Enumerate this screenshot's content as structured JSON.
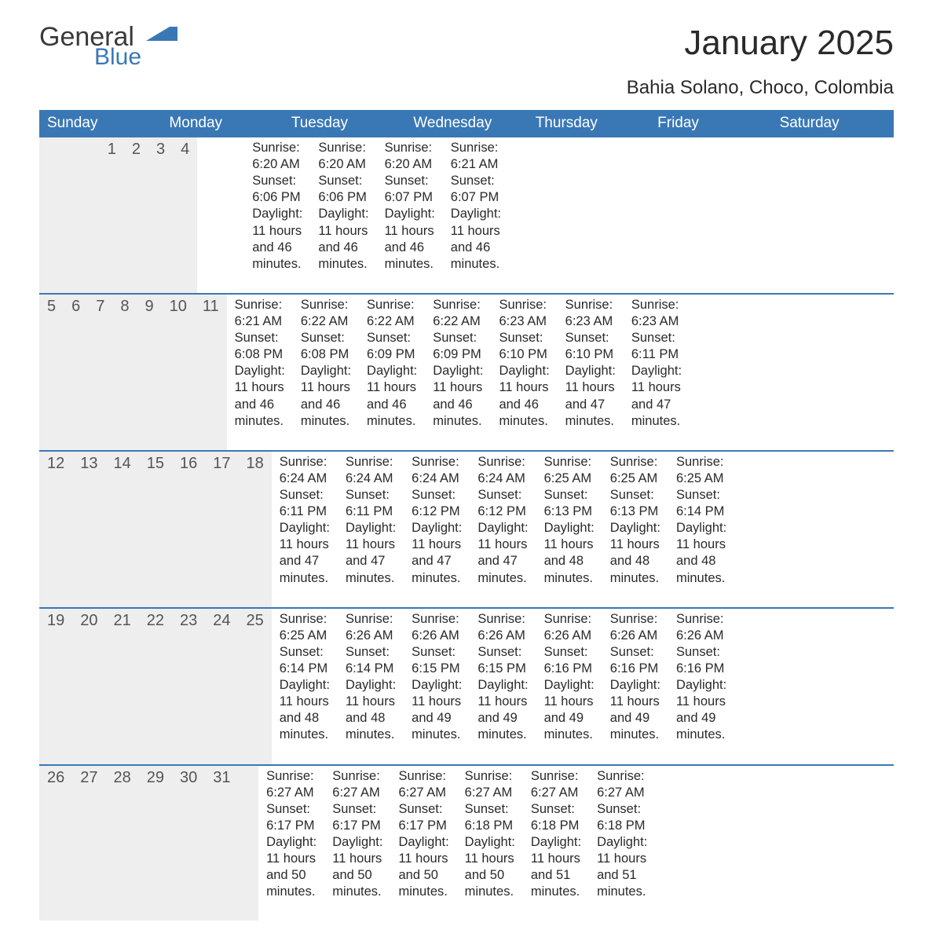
{
  "logo": {
    "general": "General",
    "blue": "Blue",
    "flag_color": "#3a78b5"
  },
  "title": "January 2025",
  "location": "Bahia Solano, Choco, Colombia",
  "colors": {
    "header_bg": "#3a78b5",
    "header_text": "#ffffff",
    "daynum_bg": "#eeeeee",
    "week_border": "#3a78b5",
    "body_text": "#2a2a2a",
    "page_bg": "#ffffff"
  },
  "day_names": [
    "Sunday",
    "Monday",
    "Tuesday",
    "Wednesday",
    "Thursday",
    "Friday",
    "Saturday"
  ],
  "weeks": [
    [
      {
        "empty": true
      },
      {
        "empty": true
      },
      {
        "empty": true
      },
      {
        "num": "1",
        "sunrise": "6:20 AM",
        "sunset": "6:06 PM",
        "daylight": "11 hours and 46 minutes."
      },
      {
        "num": "2",
        "sunrise": "6:20 AM",
        "sunset": "6:06 PM",
        "daylight": "11 hours and 46 minutes."
      },
      {
        "num": "3",
        "sunrise": "6:20 AM",
        "sunset": "6:07 PM",
        "daylight": "11 hours and 46 minutes."
      },
      {
        "num": "4",
        "sunrise": "6:21 AM",
        "sunset": "6:07 PM",
        "daylight": "11 hours and 46 minutes."
      }
    ],
    [
      {
        "num": "5",
        "sunrise": "6:21 AM",
        "sunset": "6:08 PM",
        "daylight": "11 hours and 46 minutes."
      },
      {
        "num": "6",
        "sunrise": "6:22 AM",
        "sunset": "6:08 PM",
        "daylight": "11 hours and 46 minutes."
      },
      {
        "num": "7",
        "sunrise": "6:22 AM",
        "sunset": "6:09 PM",
        "daylight": "11 hours and 46 minutes."
      },
      {
        "num": "8",
        "sunrise": "6:22 AM",
        "sunset": "6:09 PM",
        "daylight": "11 hours and 46 minutes."
      },
      {
        "num": "9",
        "sunrise": "6:23 AM",
        "sunset": "6:10 PM",
        "daylight": "11 hours and 46 minutes."
      },
      {
        "num": "10",
        "sunrise": "6:23 AM",
        "sunset": "6:10 PM",
        "daylight": "11 hours and 47 minutes."
      },
      {
        "num": "11",
        "sunrise": "6:23 AM",
        "sunset": "6:11 PM",
        "daylight": "11 hours and 47 minutes."
      }
    ],
    [
      {
        "num": "12",
        "sunrise": "6:24 AM",
        "sunset": "6:11 PM",
        "daylight": "11 hours and 47 minutes."
      },
      {
        "num": "13",
        "sunrise": "6:24 AM",
        "sunset": "6:11 PM",
        "daylight": "11 hours and 47 minutes."
      },
      {
        "num": "14",
        "sunrise": "6:24 AM",
        "sunset": "6:12 PM",
        "daylight": "11 hours and 47 minutes."
      },
      {
        "num": "15",
        "sunrise": "6:24 AM",
        "sunset": "6:12 PM",
        "daylight": "11 hours and 47 minutes."
      },
      {
        "num": "16",
        "sunrise": "6:25 AM",
        "sunset": "6:13 PM",
        "daylight": "11 hours and 48 minutes."
      },
      {
        "num": "17",
        "sunrise": "6:25 AM",
        "sunset": "6:13 PM",
        "daylight": "11 hours and 48 minutes."
      },
      {
        "num": "18",
        "sunrise": "6:25 AM",
        "sunset": "6:14 PM",
        "daylight": "11 hours and 48 minutes."
      }
    ],
    [
      {
        "num": "19",
        "sunrise": "6:25 AM",
        "sunset": "6:14 PM",
        "daylight": "11 hours and 48 minutes."
      },
      {
        "num": "20",
        "sunrise": "6:26 AM",
        "sunset": "6:14 PM",
        "daylight": "11 hours and 48 minutes."
      },
      {
        "num": "21",
        "sunrise": "6:26 AM",
        "sunset": "6:15 PM",
        "daylight": "11 hours and 49 minutes."
      },
      {
        "num": "22",
        "sunrise": "6:26 AM",
        "sunset": "6:15 PM",
        "daylight": "11 hours and 49 minutes."
      },
      {
        "num": "23",
        "sunrise": "6:26 AM",
        "sunset": "6:16 PM",
        "daylight": "11 hours and 49 minutes."
      },
      {
        "num": "24",
        "sunrise": "6:26 AM",
        "sunset": "6:16 PM",
        "daylight": "11 hours and 49 minutes."
      },
      {
        "num": "25",
        "sunrise": "6:26 AM",
        "sunset": "6:16 PM",
        "daylight": "11 hours and 49 minutes."
      }
    ],
    [
      {
        "num": "26",
        "sunrise": "6:27 AM",
        "sunset": "6:17 PM",
        "daylight": "11 hours and 50 minutes."
      },
      {
        "num": "27",
        "sunrise": "6:27 AM",
        "sunset": "6:17 PM",
        "daylight": "11 hours and 50 minutes."
      },
      {
        "num": "28",
        "sunrise": "6:27 AM",
        "sunset": "6:17 PM",
        "daylight": "11 hours and 50 minutes."
      },
      {
        "num": "29",
        "sunrise": "6:27 AM",
        "sunset": "6:18 PM",
        "daylight": "11 hours and 50 minutes."
      },
      {
        "num": "30",
        "sunrise": "6:27 AM",
        "sunset": "6:18 PM",
        "daylight": "11 hours and 51 minutes."
      },
      {
        "num": "31",
        "sunrise": "6:27 AM",
        "sunset": "6:18 PM",
        "daylight": "11 hours and 51 minutes."
      },
      {
        "empty": true
      }
    ]
  ],
  "labels": {
    "sunrise": "Sunrise: ",
    "sunset": "Sunset: ",
    "daylight": "Daylight: "
  }
}
